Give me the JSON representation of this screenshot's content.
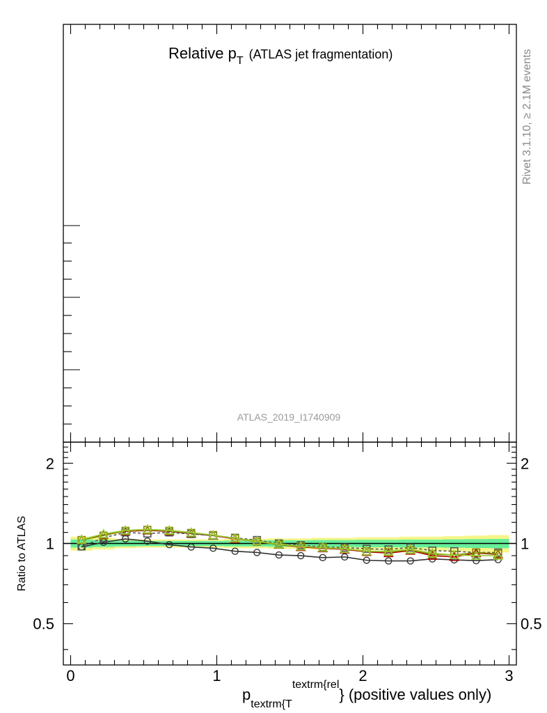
{
  "figure": {
    "title_main": "Relative p",
    "title_sub": "T",
    "title_paren": "(ATLAS jet fragmentation)",
    "side_label": "Rivet 3.1.10, ≥ 2.1M events",
    "analysis_id": "ATLAS_2019_I1740909",
    "xlabel_main": "p",
    "xlabel_sub": "textrm{T",
    "xlabel_sup": "textrm{rel",
    "xlabel_tail": "} (positive values only)"
  },
  "chart_data": [
    {
      "type": "line",
      "panel": "main",
      "title": "Relative pT (ATLAS jet fragmentation)",
      "note": "main panel shows no visible data or tick labels",
      "xlim": [
        -0.05,
        3.05
      ],
      "series": []
    },
    {
      "type": "line",
      "panel": "ratio",
      "ylabel": "Ratio to ATLAS",
      "xlim": [
        -0.05,
        3.05
      ],
      "ylim": [
        0.35,
        2.4
      ],
      "log_y": true,
      "x_ticks": [
        "0",
        "1",
        "2",
        "3"
      ],
      "y_ticks": [
        "0.5",
        "1",
        "2"
      ],
      "x": [
        0.075,
        0.225,
        0.375,
        0.525,
        0.675,
        0.825,
        0.975,
        1.125,
        1.275,
        1.425,
        1.575,
        1.725,
        1.875,
        2.025,
        2.175,
        2.325,
        2.475,
        2.625,
        2.775,
        2.925
      ],
      "reference": {
        "value": 1.0,
        "color": "#000000"
      },
      "bands": [
        {
          "color": "#f5f58a",
          "halfwidth": [
            0.06,
            0.05,
            0.04,
            0.035,
            0.035,
            0.035,
            0.035,
            0.04,
            0.04,
            0.045,
            0.045,
            0.05,
            0.05,
            0.055,
            0.055,
            0.06,
            0.06,
            0.065,
            0.07,
            0.075
          ]
        },
        {
          "color": "#66ee99",
          "halfwidth": [
            0.035,
            0.03,
            0.025,
            0.022,
            0.022,
            0.022,
            0.022,
            0.025,
            0.025,
            0.028,
            0.028,
            0.03,
            0.03,
            0.032,
            0.032,
            0.034,
            0.034,
            0.036,
            0.038,
            0.04
          ]
        }
      ],
      "series": [
        {
          "marker": "circle",
          "color": "#333333",
          "dash": false,
          "values": [
            0.97,
            1.01,
            1.04,
            1.02,
            0.99,
            0.97,
            0.96,
            0.935,
            0.925,
            0.905,
            0.9,
            0.885,
            0.89,
            0.865,
            0.86,
            0.86,
            0.875,
            0.868,
            0.862,
            0.87
          ]
        },
        {
          "marker": "triangle",
          "color": "#aa0000",
          "dash": false,
          "values": [
            1.03,
            1.08,
            1.11,
            1.12,
            1.11,
            1.09,
            1.07,
            1.04,
            1.02,
            0.99,
            0.97,
            0.96,
            0.95,
            0.93,
            0.92,
            0.94,
            0.9,
            0.89,
            0.92,
            0.91
          ]
        },
        {
          "marker": "square",
          "color": "#555555",
          "dash": true,
          "values": [
            0.975,
            1.05,
            1.1,
            1.09,
            1.1,
            1.085,
            1.07,
            1.05,
            1.03,
            1.0,
            0.985,
            0.97,
            0.965,
            0.955,
            0.95,
            0.965,
            0.94,
            0.935,
            0.925,
            0.925
          ]
        },
        {
          "marker": "square",
          "color": "#888800",
          "dash": false,
          "values": [
            1.03,
            1.07,
            1.115,
            1.125,
            1.115,
            1.095,
            1.075,
            1.045,
            1.015,
            0.99,
            0.975,
            0.965,
            0.955,
            0.935,
            0.93,
            0.945,
            0.91,
            0.905,
            0.925,
            0.915
          ]
        },
        {
          "marker": "triangle",
          "color": "#99cc33",
          "dash": false,
          "values": [
            1.035,
            1.085,
            1.12,
            1.13,
            1.12,
            1.1,
            1.075,
            1.045,
            1.02,
            0.995,
            0.975,
            0.965,
            0.955,
            0.935,
            0.935,
            0.95,
            0.92,
            0.905,
            0.9,
            0.9
          ]
        }
      ]
    }
  ]
}
